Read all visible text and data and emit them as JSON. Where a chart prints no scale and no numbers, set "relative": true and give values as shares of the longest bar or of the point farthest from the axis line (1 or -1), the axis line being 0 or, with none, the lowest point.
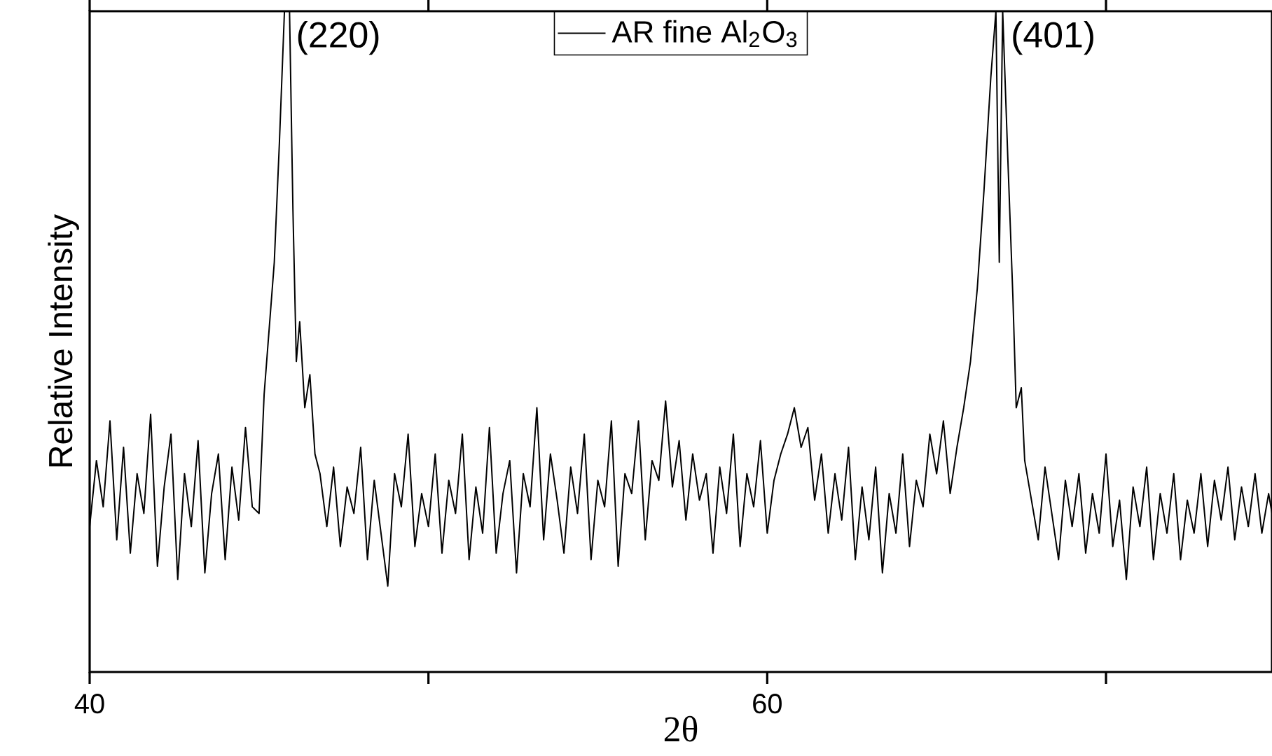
{
  "chart_data": {
    "type": "line",
    "xlabel": "2θ",
    "ylabel": "Relative Intensity",
    "relative": true,
    "xlim": [
      40,
      74.9
    ],
    "xticks": [
      40,
      {
        "value": 50,
        "label": null
      },
      60,
      {
        "value": 70,
        "label": null
      }
    ],
    "legend": "top",
    "grid": false,
    "marker": "none",
    "line_style": "solid",
    "annotations": [
      {
        "text": "(220)",
        "x": 45.8,
        "y": 1
      },
      {
        "text": "(401)",
        "x": 66.9,
        "y": 1
      }
    ],
    "series": [
      {
        "name": "AR fine Al$_{2}$O$_{3}$",
        "color": "#000000",
        "x": [
          40.0,
          40.2,
          40.4,
          40.6,
          40.8,
          41.0,
          41.2,
          41.4,
          41.6,
          41.8,
          42.0,
          42.2,
          42.4,
          42.6,
          42.8,
          43.0,
          43.2,
          43.4,
          43.6,
          43.8,
          44.0,
          44.2,
          44.4,
          44.6,
          44.8,
          45.0,
          45.15,
          45.3,
          45.45,
          45.6,
          45.75,
          45.9,
          46.0,
          46.1,
          46.2,
          46.35,
          46.5,
          46.65,
          46.8,
          47.0,
          47.2,
          47.4,
          47.6,
          47.8,
          48.0,
          48.2,
          48.4,
          48.6,
          48.8,
          49.0,
          49.2,
          49.4,
          49.6,
          49.8,
          50.0,
          50.2,
          50.4,
          50.6,
          50.8,
          51.0,
          51.2,
          51.4,
          51.6,
          51.8,
          52.0,
          52.2,
          52.4,
          52.6,
          52.8,
          53.0,
          53.2,
          53.4,
          53.6,
          53.8,
          54.0,
          54.2,
          54.4,
          54.6,
          54.8,
          55.0,
          55.2,
          55.4,
          55.6,
          55.8,
          56.0,
          56.2,
          56.4,
          56.6,
          56.8,
          57.0,
          57.2,
          57.4,
          57.6,
          57.8,
          58.0,
          58.2,
          58.4,
          58.6,
          58.8,
          59.0,
          59.2,
          59.4,
          59.6,
          59.8,
          60.0,
          60.2,
          60.4,
          60.6,
          60.8,
          61.0,
          61.2,
          61.4,
          61.6,
          61.8,
          62.0,
          62.2,
          62.4,
          62.6,
          62.8,
          63.0,
          63.2,
          63.4,
          63.6,
          63.8,
          64.0,
          64.2,
          64.4,
          64.6,
          64.8,
          65.0,
          65.2,
          65.4,
          65.6,
          65.8,
          66.0,
          66.2,
          66.4,
          66.6,
          66.75,
          66.85,
          66.95,
          67.1,
          67.25,
          67.35,
          67.5,
          67.6,
          67.8,
          68.0,
          68.2,
          68.4,
          68.6,
          68.8,
          69.0,
          69.2,
          69.4,
          69.6,
          69.8,
          70.0,
          70.2,
          70.4,
          70.6,
          70.8,
          71.0,
          71.2,
          71.4,
          71.6,
          71.8,
          72.0,
          72.2,
          72.4,
          72.6,
          72.8,
          73.0,
          73.2,
          73.4,
          73.6,
          73.8,
          74.0,
          74.2,
          74.4,
          74.6,
          74.8,
          74.9
        ],
        "values": [
          0.22,
          0.32,
          0.25,
          0.38,
          0.2,
          0.34,
          0.18,
          0.3,
          0.24,
          0.39,
          0.16,
          0.28,
          0.36,
          0.14,
          0.3,
          0.22,
          0.35,
          0.15,
          0.27,
          0.33,
          0.17,
          0.31,
          0.23,
          0.37,
          0.25,
          0.24,
          0.42,
          0.52,
          0.62,
          0.8,
          1.0,
          1.0,
          0.7,
          0.47,
          0.53,
          0.4,
          0.45,
          0.33,
          0.3,
          0.22,
          0.31,
          0.19,
          0.28,
          0.24,
          0.34,
          0.17,
          0.29,
          0.21,
          0.13,
          0.3,
          0.25,
          0.36,
          0.19,
          0.27,
          0.22,
          0.33,
          0.18,
          0.29,
          0.24,
          0.36,
          0.17,
          0.28,
          0.21,
          0.37,
          0.18,
          0.27,
          0.32,
          0.15,
          0.3,
          0.25,
          0.4,
          0.2,
          0.33,
          0.26,
          0.18,
          0.31,
          0.24,
          0.36,
          0.17,
          0.29,
          0.25,
          0.38,
          0.16,
          0.3,
          0.27,
          0.38,
          0.2,
          0.32,
          0.29,
          0.41,
          0.28,
          0.35,
          0.23,
          0.33,
          0.26,
          0.3,
          0.18,
          0.31,
          0.24,
          0.36,
          0.19,
          0.3,
          0.25,
          0.35,
          0.21,
          0.29,
          0.33,
          0.36,
          0.4,
          0.34,
          0.37,
          0.26,
          0.33,
          0.21,
          0.3,
          0.23,
          0.34,
          0.17,
          0.28,
          0.2,
          0.31,
          0.15,
          0.27,
          0.21,
          0.33,
          0.19,
          0.29,
          0.25,
          0.36,
          0.3,
          0.38,
          0.27,
          0.34,
          0.4,
          0.47,
          0.58,
          0.73,
          0.9,
          1.0,
          0.62,
          1.0,
          0.78,
          0.57,
          0.4,
          0.43,
          0.32,
          0.26,
          0.2,
          0.31,
          0.24,
          0.17,
          0.29,
          0.22,
          0.3,
          0.18,
          0.27,
          0.21,
          0.33,
          0.19,
          0.26,
          0.14,
          0.28,
          0.22,
          0.31,
          0.17,
          0.27,
          0.21,
          0.3,
          0.17,
          0.26,
          0.21,
          0.3,
          0.19,
          0.29,
          0.23,
          0.31,
          0.2,
          0.28,
          0.22,
          0.3,
          0.21,
          0.27,
          0.24
        ]
      }
    ]
  }
}
